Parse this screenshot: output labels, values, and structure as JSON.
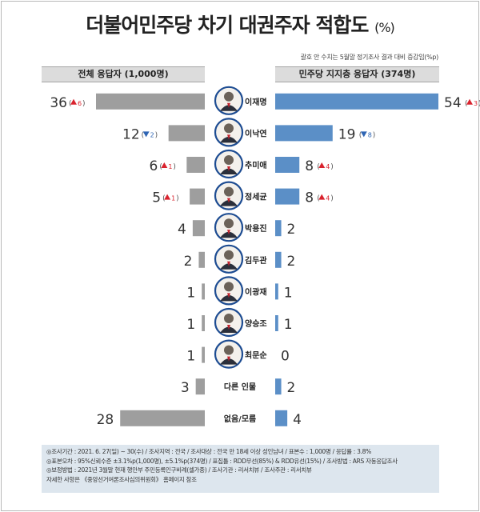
{
  "title": "더불어민주당 차기 대권주자 적합도",
  "title_unit": "(%)",
  "note": "괄호 안 수치는 5월말 정기조사 결과 대비 증감임(%p)",
  "colors": {
    "left_bar": "#9e9e9e",
    "right_bar": "#5b8fc7",
    "up": "#d9232e",
    "down": "#2f65b3",
    "header_bg": "#dcdcdc",
    "footer_bg": "#dde6ee"
  },
  "chart_data": {
    "type": "bar",
    "title": "더불어민주당 차기 대권주자 적합도",
    "categories": [
      "이재명",
      "이낙연",
      "추미애",
      "정세균",
      "박용진",
      "김두관",
      "이광재",
      "양승조",
      "최문순",
      "다른 인물",
      "없음/모름"
    ],
    "avatar_icons": [
      "person-icon",
      "person-icon",
      "person-icon",
      "person-icon",
      "person-icon",
      "person-icon",
      "person-icon",
      "person-icon",
      "person-icon",
      null,
      null
    ],
    "series": [
      {
        "name": "전체 응답자 (1,000명)",
        "values": [
          36,
          12,
          6,
          5,
          4,
          2,
          1,
          1,
          1,
          3,
          28
        ],
        "change": [
          {
            "dir": "up",
            "text": "6"
          },
          {
            "dir": "down",
            "text": "2"
          },
          {
            "dir": "up",
            "text": "1"
          },
          {
            "dir": "up",
            "text": "1"
          },
          null,
          null,
          null,
          null,
          null,
          null,
          null
        ]
      },
      {
        "name": "민주당 지지층 응답자 (374명)",
        "values": [
          54,
          19,
          8,
          8,
          2,
          2,
          1,
          1,
          0,
          2,
          4
        ],
        "change": [
          {
            "dir": "up",
            "text": "3"
          },
          {
            "dir": "down",
            "text": "8"
          },
          {
            "dir": "up",
            "text": "4"
          },
          {
            "dir": "up",
            "text": "4"
          },
          null,
          null,
          null,
          null,
          null,
          null,
          null
        ]
      }
    ],
    "xlim": [
      0,
      54
    ]
  },
  "footer": [
    "◎조사기간 : 2021. 6. 27(일) ~ 30(수) / 조사지역 : 전국 / 조사대상 : 전국 만 18세 이상 성인남녀 / 표본수 : 1,000명 / 응답률 : 3.8%",
    "◎표본오차 : 95%신뢰수준 ±3.1%p(1,000명), ±5.1%p(374명) / 표집틀 : RDD무선(85%) & RDD유선(15%) / 조사방법 : ARS 자동응답조사",
    "◎보정방법 : 2021년 3월말 현재 행안부 주민등록인구비례(셀가중) / 조사기관 : 리서치뷰 / 조사주관 : 리서치뷰",
    "자세한 사항은 《중앙선거여론조사심의위원회》 홈페이지 참조"
  ]
}
